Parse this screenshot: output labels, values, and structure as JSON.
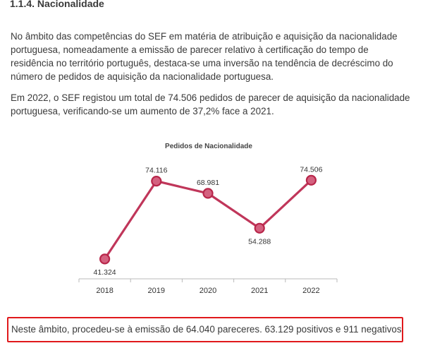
{
  "document": {
    "heading": "1.1.4. Nacionalidade",
    "paragraphs": [
      "No âmbito das competências do SEF em matéria de atribuição e aquisição da nacionalidade portuguesa, nomeadamente a emissão de parecer relativo à certificação do tempo de residência no território português, destaca-se uma inversão na tendência de decréscimo do número de pedidos de aquisição da nacionalidade portuguesa.",
      "Em 2022, o SEF registou um total de 74.506 pedidos de parecer de aquisição da nacionalidade portuguesa, verificando-se um aumento de 37,2% face a 2021."
    ],
    "highlight_box_text": "Neste âmbito, procedeu-se à emissão de 64.040 pareceres. 63.129 positivos e 911 negativos.",
    "highlight_border_color": "#e0191c"
  },
  "chart_data": {
    "type": "line",
    "title": "Pedidos de Nacionalidade",
    "categories": [
      "2018",
      "2019",
      "2020",
      "2021",
      "2022"
    ],
    "values": [
      41324,
      74116,
      68981,
      54288,
      74506
    ],
    "data_labels": [
      "41.324",
      "74.116",
      "68.981",
      "54.288",
      "74.506"
    ],
    "label_position": [
      "below",
      "above",
      "above",
      "below",
      "above"
    ],
    "xlabel": "",
    "ylabel": "",
    "ylim": [
      30000,
      85000
    ],
    "grid": false,
    "legend": "none",
    "line_color": "#c0365a",
    "marker_fill": "#d4617f",
    "marker_stroke": "#b8264a"
  }
}
